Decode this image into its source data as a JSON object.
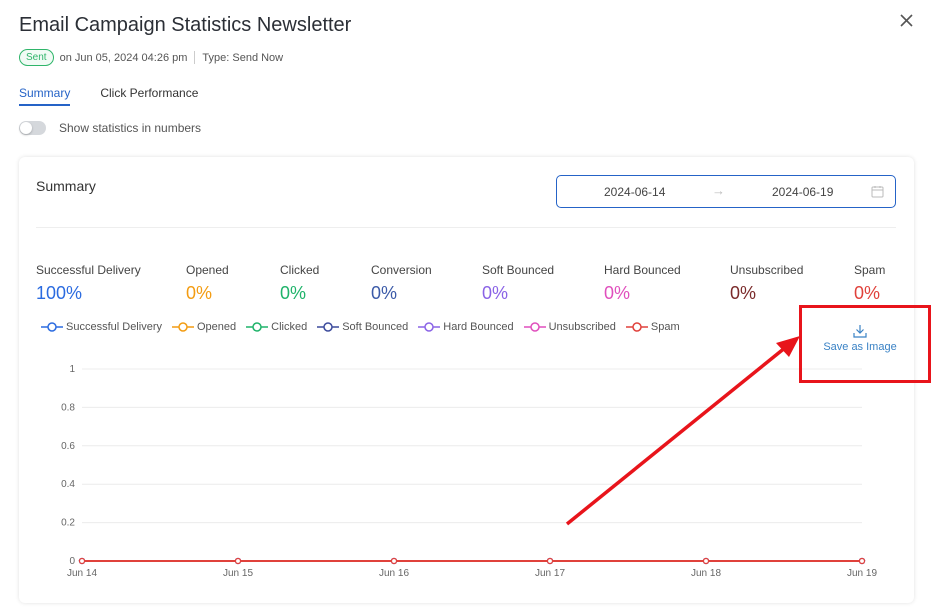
{
  "header": {
    "title": "Email Campaign Statistics Newsletter",
    "status_badge": "Sent",
    "sent_on": "on Jun 05, 2024 04:26 pm",
    "send_type": "Type: Send Now"
  },
  "tabs": [
    {
      "label": "Summary",
      "active": true
    },
    {
      "label": "Click Performance",
      "active": false
    }
  ],
  "toggle": {
    "label": "Show statistics in numbers",
    "on": false
  },
  "summary": {
    "title": "Summary",
    "date_start": "2024-06-14",
    "date_end": "2024-06-19"
  },
  "stats": [
    {
      "label": "Successful Delivery",
      "value": "100%",
      "color": "#2b6be0"
    },
    {
      "label": "Opened",
      "value": "0%",
      "color": "#f39c12"
    },
    {
      "label": "Clicked",
      "value": "0%",
      "color": "#1fb36a"
    },
    {
      "label": "Conversion",
      "value": "0%",
      "color": "#3b5aa8"
    },
    {
      "label": "Soft Bounced",
      "value": "0%",
      "color": "#8a63e6"
    },
    {
      "label": "Hard Bounced",
      "value": "0%",
      "color": "#e04fbd"
    },
    {
      "label": "Unsubscribed",
      "value": "0%",
      "color": "#7a2a2a"
    },
    {
      "label": "Spam",
      "value": "0%",
      "color": "#e0413b"
    }
  ],
  "legend": [
    {
      "label": "Successful Delivery",
      "color": "#2b6be0"
    },
    {
      "label": "Opened",
      "color": "#f39c12"
    },
    {
      "label": "Clicked",
      "color": "#1fb36a"
    },
    {
      "label": "Soft Bounced",
      "color": "#3b4a9c"
    },
    {
      "label": "Hard Bounced",
      "color": "#8a63e6"
    },
    {
      "label": "Unsubscribed",
      "color": "#e04fbd"
    },
    {
      "label": "Spam",
      "color": "#e0413b"
    }
  ],
  "save_image": {
    "label": "Save as Image",
    "icon": "download-icon"
  },
  "chart_data": {
    "type": "line",
    "x": [
      "Jun 14",
      "Jun 15",
      "Jun 16",
      "Jun 17",
      "Jun 18",
      "Jun 19"
    ],
    "ylim": [
      0,
      1
    ],
    "yticks": [
      "0",
      "0.2",
      "0.4",
      "0.6",
      "0.8",
      "1"
    ],
    "grid": true,
    "legend_position": "top",
    "series": [
      {
        "name": "Successful Delivery",
        "values": [
          0,
          0,
          0,
          0,
          0,
          0
        ],
        "color": "#2b6be0"
      },
      {
        "name": "Opened",
        "values": [
          0,
          0,
          0,
          0,
          0,
          0
        ],
        "color": "#f39c12"
      },
      {
        "name": "Clicked",
        "values": [
          0,
          0,
          0,
          0,
          0,
          0
        ],
        "color": "#1fb36a"
      },
      {
        "name": "Soft Bounced",
        "values": [
          0,
          0,
          0,
          0,
          0,
          0
        ],
        "color": "#3b4a9c"
      },
      {
        "name": "Hard Bounced",
        "values": [
          0,
          0,
          0,
          0,
          0,
          0
        ],
        "color": "#8a63e6"
      },
      {
        "name": "Unsubscribed",
        "values": [
          0,
          0,
          0,
          0,
          0,
          0
        ],
        "color": "#e04fbd"
      },
      {
        "name": "Spam",
        "values": [
          0,
          0,
          0,
          0,
          0,
          0
        ],
        "color": "#e0413b"
      }
    ]
  },
  "annotation": {
    "color": "#e8141b"
  }
}
